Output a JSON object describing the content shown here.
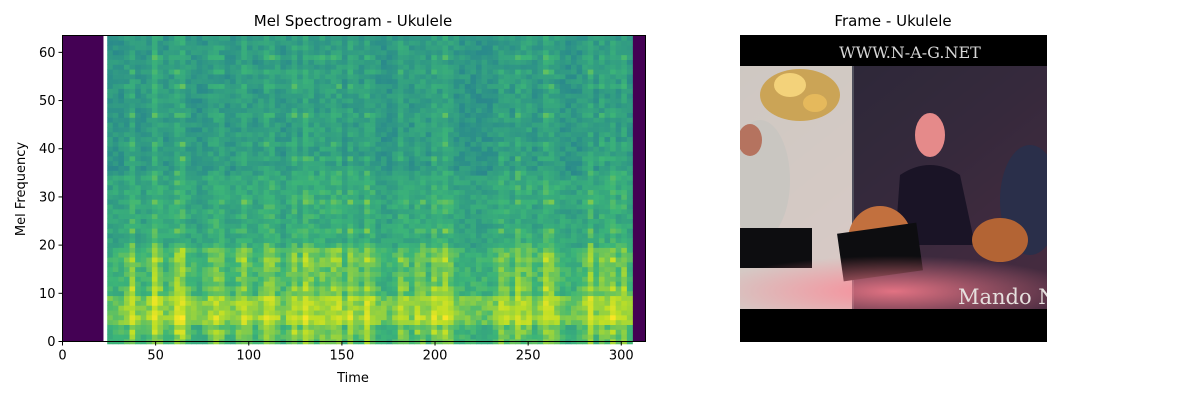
{
  "charts": {
    "spectrogram": {
      "title": "Mel Spectrogram - Ukulele",
      "xlabel": "Time",
      "ylabel": "Mel Frequency"
    },
    "frame": {
      "title": "Frame - Ukulele",
      "overlay_top": "WWW.N-A-G.NET",
      "overlay_bottom": "Mando N"
    }
  },
  "chart_data": [
    {
      "type": "heatmap",
      "title": "Mel Spectrogram - Ukulele",
      "xlabel": "Time",
      "ylabel": "Mel Frequency",
      "xlim": [
        0,
        313
      ],
      "ylim": [
        0,
        63.5
      ],
      "x_ticks": [
        "0",
        "50",
        "100",
        "150",
        "200",
        "250",
        "300"
      ],
      "y_ticks": [
        "0",
        "10",
        "20",
        "30",
        "40",
        "50",
        "60"
      ],
      "mel_bins": 64,
      "frames": 313,
      "silent_frames_start": [
        0,
        22
      ],
      "silent_frames_end": [
        305,
        313
      ],
      "colormap": "viridis",
      "grid": false,
      "legend": "none"
    }
  ],
  "colors": {
    "silence": "#440154",
    "low": "#2a8a8b",
    "mid": "#3cb578",
    "high": "#bddf26",
    "peak": "#fde725"
  }
}
